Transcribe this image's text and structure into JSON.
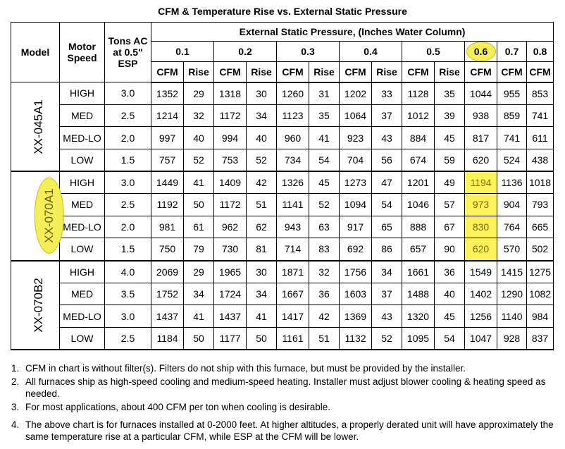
{
  "title": "CFM & Temperature Rise vs. External Static Pressure",
  "headers": {
    "model": "Model",
    "motor_speed": "Motor Speed",
    "tons": "Tons AC at 0.5\" ESP",
    "esp": "External Static Pressure, (Inches Water Column)",
    "esp_values": [
      "0.1",
      "0.2",
      "0.3",
      "0.4",
      "0.5",
      "0.6",
      "0.7",
      "0.8"
    ],
    "cfm": "CFM",
    "rise": "Rise"
  },
  "highlight_color": "#fdf25a",
  "groups": [
    {
      "model": "XX-045A1",
      "highlighted": false,
      "rows": [
        {
          "speed": "HIGH",
          "tons": "3.0",
          "values": [
            "1352",
            "29",
            "1318",
            "30",
            "1260",
            "31",
            "1202",
            "33",
            "1128",
            "35",
            "1044",
            "955",
            "853"
          ]
        },
        {
          "speed": "MED",
          "tons": "2.5",
          "values": [
            "1214",
            "32",
            "1172",
            "34",
            "1123",
            "35",
            "1064",
            "37",
            "1012",
            "39",
            "938",
            "859",
            "741"
          ]
        },
        {
          "speed": "MED-LO",
          "tons": "2.0",
          "values": [
            "997",
            "40",
            "994",
            "40",
            "960",
            "41",
            "923",
            "43",
            "884",
            "45",
            "817",
            "741",
            "611"
          ]
        },
        {
          "speed": "LOW",
          "tons": "1.5",
          "values": [
            "757",
            "52",
            "753",
            "52",
            "734",
            "54",
            "704",
            "56",
            "674",
            "59",
            "620",
            "524",
            "438"
          ]
        }
      ]
    },
    {
      "model": "XX-070A1",
      "highlighted": true,
      "rows": [
        {
          "speed": "HIGH",
          "tons": "3.0",
          "values": [
            "1449",
            "41",
            "1409",
            "42",
            "1326",
            "45",
            "1273",
            "47",
            "1201",
            "49",
            "1194",
            "1136",
            "1018"
          ]
        },
        {
          "speed": "MED",
          "tons": "2.5",
          "values": [
            "1192",
            "50",
            "1172",
            "51",
            "1141",
            "52",
            "1094",
            "54",
            "1046",
            "57",
            "973",
            "904",
            "793"
          ]
        },
        {
          "speed": "MED-LO",
          "tons": "2.0",
          "values": [
            "981",
            "61",
            "962",
            "62",
            "943",
            "63",
            "917",
            "65",
            "888",
            "67",
            "830",
            "764",
            "665"
          ]
        },
        {
          "speed": "LOW",
          "tons": "1.5",
          "values": [
            "750",
            "79",
            "730",
            "81",
            "714",
            "83",
            "692",
            "86",
            "657",
            "90",
            "620",
            "570",
            "502"
          ]
        }
      ]
    },
    {
      "model": "XX-070B2",
      "highlighted": false,
      "rows": [
        {
          "speed": "HIGH",
          "tons": "4.0",
          "values": [
            "2069",
            "29",
            "1965",
            "30",
            "1871",
            "32",
            "1756",
            "34",
            "1661",
            "36",
            "1549",
            "1415",
            "1275"
          ]
        },
        {
          "speed": "MED",
          "tons": "3.5",
          "values": [
            "1752",
            "34",
            "1724",
            "34",
            "1667",
            "36",
            "1603",
            "37",
            "1488",
            "40",
            "1402",
            "1290",
            "1082"
          ]
        },
        {
          "speed": "MED-LO",
          "tons": "3.0",
          "values": [
            "1437",
            "41",
            "1437",
            "41",
            "1417",
            "42",
            "1369",
            "43",
            "1320",
            "45",
            "1256",
            "1140",
            "984"
          ]
        },
        {
          "speed": "LOW",
          "tons": "2.5",
          "values": [
            "1184",
            "50",
            "1177",
            "50",
            "1161",
            "51",
            "1132",
            "52",
            "1095",
            "54",
            "1047",
            "928",
            "837"
          ]
        }
      ]
    }
  ],
  "notes": [
    {
      "num": "1.",
      "text": "CFM in chart is without filter(s). Filters do not ship with this furnace, but must be provided by the installer."
    },
    {
      "num": "2.",
      "text": "All furnaces ship as high-speed cooling and medium-speed heating. Installer must adjust blower cooling & heating speed as needed."
    },
    {
      "num": "3.",
      "text": "For most applications, about 400 CFM per ton when cooling is desirable."
    },
    {
      "num": "4.",
      "text": "The above chart is for furnaces installed at 0-2000 feet. At higher altitudes, a properly derated unit will have approximately the same temperature rise at a particular CFM, while ESP at the CFM will be lower."
    }
  ]
}
